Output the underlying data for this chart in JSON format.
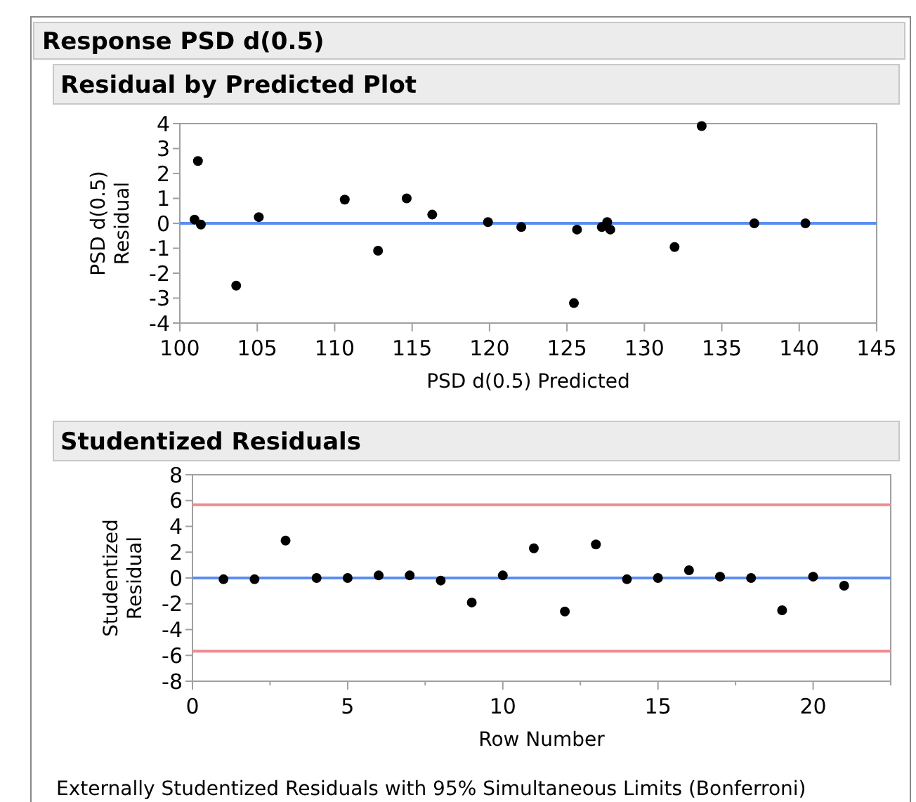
{
  "chart_data": [
    {
      "type": "scatter",
      "title": "Residual by Predicted Plot",
      "annotations": [
        "Response PSD d(0.5)"
      ],
      "xlabel": "PSD d(0.5) Predicted",
      "ylabel": "PSD d(0.5)\nResidual",
      "marker": "circle",
      "grid": false,
      "xlim": [
        100,
        145
      ],
      "xticks": [
        100,
        105,
        110,
        115,
        120,
        125,
        130,
        135,
        140,
        145
      ],
      "ylim": [
        -4,
        4
      ],
      "yticks": [
        -4,
        -3,
        -2,
        -1,
        0,
        1,
        2,
        3,
        4
      ],
      "series": [
        {
          "color": "#000000",
          "x": [
            100.95,
            101.17,
            101.36,
            103.64,
            105.1,
            110.65,
            112.8,
            114.65,
            116.3,
            119.9,
            122.05,
            125.45,
            125.65,
            127.25,
            127.6,
            127.8,
            131.95,
            133.7,
            137.1,
            140.4
          ],
          "values": [
            0.15,
            2.5,
            -0.05,
            -2.5,
            0.25,
            0.95,
            -1.1,
            1.0,
            0.35,
            0.05,
            -0.15,
            -3.2,
            -0.25,
            -0.15,
            0.05,
            -0.25,
            -0.95,
            3.9,
            0,
            0
          ]
        }
      ],
      "ref_lines": [
        {
          "axis": "y",
          "value": 0,
          "color": "#5b8def"
        }
      ]
    },
    {
      "type": "scatter",
      "title": "Studentized Residuals",
      "annotations": [
        "Externally Studentized Residuals with 95% Simultaneous Limits (Bonferroni)"
      ],
      "xlabel": "Row Number",
      "ylabel": "Studentized\nResidual",
      "marker": "circle",
      "grid": false,
      "xlim": [
        0,
        22.5
      ],
      "xticks": [
        0,
        {
          "value": 2.5,
          "label": null
        },
        5,
        {
          "value": 7.5,
          "label": null
        },
        10,
        {
          "value": 12.5,
          "label": null
        },
        15,
        {
          "value": 17.5,
          "label": null
        },
        20,
        {
          "value": 22.5,
          "label": null
        }
      ],
      "ylim": [
        -8,
        8
      ],
      "yticks": [
        -8,
        -6,
        -4,
        -2,
        0,
        2,
        4,
        6,
        8
      ],
      "series": [
        {
          "color": "#000000",
          "x": [
            1,
            2,
            3,
            4,
            5,
            6,
            7,
            8,
            9,
            10,
            11,
            12,
            13,
            14,
            15,
            16,
            17,
            18,
            19,
            20,
            21
          ],
          "values": [
            -0.1,
            -0.1,
            2.9,
            0,
            0,
            0.2,
            0.2,
            -0.2,
            -1.9,
            0.2,
            2.3,
            -2.6,
            2.6,
            -0.1,
            0,
            0.6,
            0.1,
            0,
            -2.5,
            0.1,
            -0.6
          ]
        }
      ],
      "ref_lines": [
        {
          "axis": "y",
          "value": 0,
          "color": "#5b8def"
        },
        {
          "axis": "y",
          "value": 5.67,
          "color": "#f08a8f"
        },
        {
          "axis": "y",
          "value": -5.67,
          "color": "#f08a8f"
        }
      ]
    }
  ]
}
